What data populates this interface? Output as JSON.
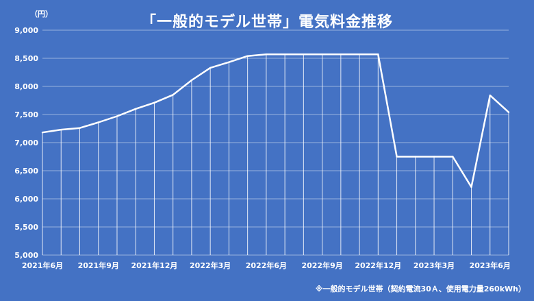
{
  "chart_data": {
    "type": "area",
    "title": "「一般的モデル世帯」電気料金推移",
    "y_unit": "（円）",
    "footnote": "※一般的モデル世帯（契約電流30Ａ、使用電力量260kWh）",
    "xlabel": "",
    "ylabel": "",
    "ylim": [
      5000,
      9000
    ],
    "yticks": [
      5000,
      5500,
      6000,
      6500,
      7000,
      7500,
      8000,
      8500,
      9000
    ],
    "ytick_labels": [
      "5,000",
      "5,500",
      "6,000",
      "6,500",
      "7,000",
      "7,500",
      "8,000",
      "8,500",
      "9,000"
    ],
    "x": [
      "2021-06",
      "2021-07",
      "2021-08",
      "2021-09",
      "2021-10",
      "2021-11",
      "2021-12",
      "2022-01",
      "2022-02",
      "2022-03",
      "2022-04",
      "2022-05",
      "2022-06",
      "2022-07",
      "2022-08",
      "2022-09",
      "2022-10",
      "2022-11",
      "2022-12",
      "2023-01",
      "2023-02",
      "2023-03",
      "2023-04",
      "2023-05",
      "2023-06",
      "2023-07"
    ],
    "xtick_labels": [
      {
        "index": 0,
        "label": "2021年6月"
      },
      {
        "index": 3,
        "label": "2021年9月"
      },
      {
        "index": 6,
        "label": "2021年12月"
      },
      {
        "index": 9,
        "label": "2022年3月"
      },
      {
        "index": 12,
        "label": "2022年6月"
      },
      {
        "index": 15,
        "label": "2022年9月"
      },
      {
        "index": 18,
        "label": "2022年12月"
      },
      {
        "index": 21,
        "label": "2023年3月"
      },
      {
        "index": 24,
        "label": "2023年6月"
      }
    ],
    "series": [
      {
        "values": [
          7180,
          7230,
          7260,
          7360,
          7470,
          7600,
          7710,
          7850,
          8110,
          8330,
          8430,
          8540,
          8570,
          8570,
          8570,
          8570,
          8570,
          8570,
          8570,
          6750,
          6750,
          6750,
          6750,
          6210,
          7840,
          7540
        ]
      }
    ],
    "grid": true,
    "colors": {
      "background": "#4472C4",
      "line": "#FFFFFF"
    }
  }
}
